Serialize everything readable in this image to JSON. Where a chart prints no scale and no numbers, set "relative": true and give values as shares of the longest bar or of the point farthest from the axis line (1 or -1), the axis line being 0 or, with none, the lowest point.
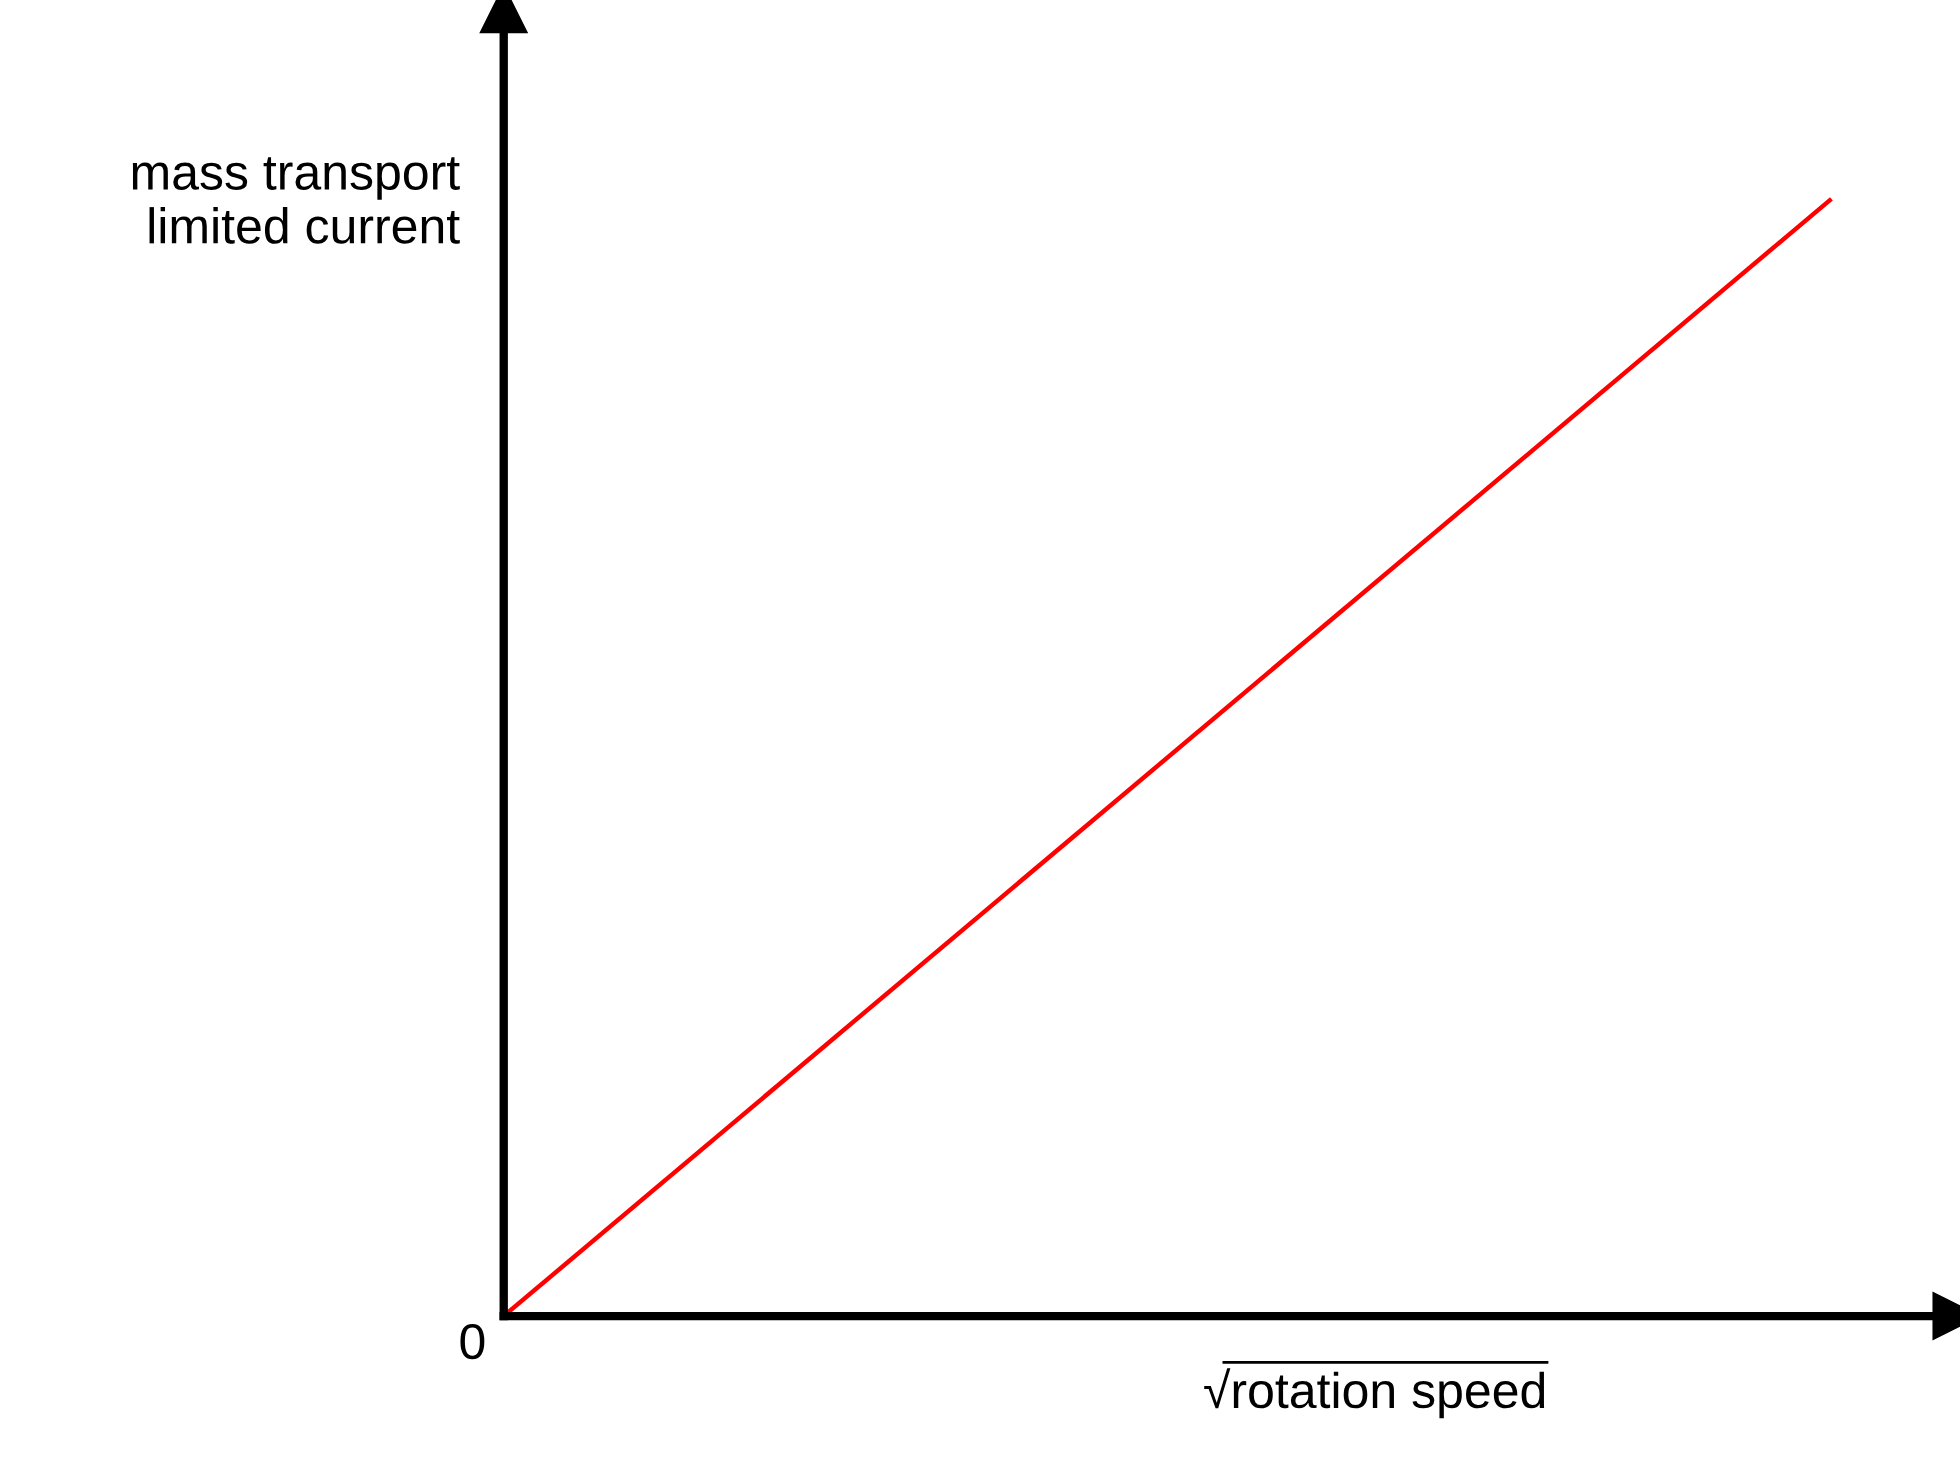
{
  "chart_data": {
    "type": "line",
    "relative": true,
    "xlabel": "√rotation speed",
    "ylabel": "mass transport\nlimited current",
    "categories": [
      null,
      null
    ],
    "series": [
      {
        "color": "#ff0000",
        "values": [
          0,
          1
        ]
      }
    ],
    "annotations": [
      "0"
    ]
  }
}
